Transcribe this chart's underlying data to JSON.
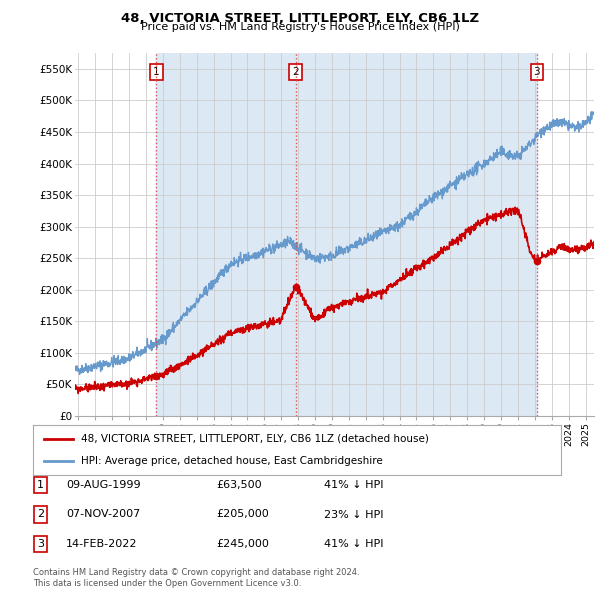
{
  "title": "48, VICTORIA STREET, LITTLEPORT, ELY, CB6 1LZ",
  "subtitle": "Price paid vs. HM Land Registry's House Price Index (HPI)",
  "ylabel_vals": [
    "£0",
    "£50K",
    "£100K",
    "£150K",
    "£200K",
    "£250K",
    "£300K",
    "£350K",
    "£400K",
    "£450K",
    "£500K",
    "£550K"
  ],
  "yticks": [
    0,
    50000,
    100000,
    150000,
    200000,
    250000,
    300000,
    350000,
    400000,
    450000,
    500000,
    550000
  ],
  "ylim": [
    0,
    575000
  ],
  "xlim_start": 1994.8,
  "xlim_end": 2025.5,
  "sale_dates": [
    1999.61,
    2007.85,
    2022.12
  ],
  "sale_prices": [
    63500,
    205000,
    245000
  ],
  "sale_labels": [
    "1",
    "2",
    "3"
  ],
  "vline_color": "#dd4444",
  "vline_style": ":",
  "shade_color": "#dde8f5",
  "legend_line1": "48, VICTORIA STREET, LITTLEPORT, ELY, CB6 1LZ (detached house)",
  "legend_line2": "HPI: Average price, detached house, East Cambridgeshire",
  "table_rows": [
    [
      "1",
      "09-AUG-1999",
      "£63,500",
      "41% ↓ HPI"
    ],
    [
      "2",
      "07-NOV-2007",
      "£205,000",
      "23% ↓ HPI"
    ],
    [
      "3",
      "14-FEB-2022",
      "£245,000",
      "41% ↓ HPI"
    ]
  ],
  "footer": "Contains HM Land Registry data © Crown copyright and database right 2024.\nThis data is licensed under the Open Government Licence v3.0.",
  "hpi_color": "#6699cc",
  "price_color": "#cc0000",
  "bg_color": "#ffffff",
  "grid_color": "#cccccc"
}
